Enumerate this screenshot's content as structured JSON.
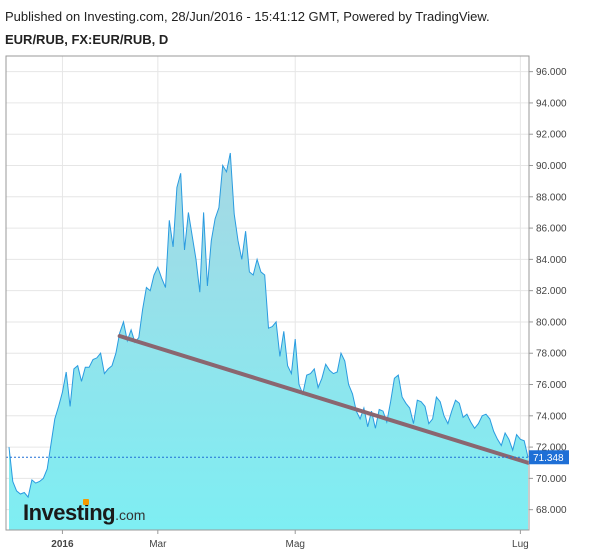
{
  "header": {
    "published": "Published on Investing.com, 28/Jun/2016 - 15:41:12 GMT, Powered by TradingView.",
    "symbol": "EUR/RUB, FX:EUR/RUB, D"
  },
  "logo": {
    "main": "Investing",
    "suffix": ".com"
  },
  "colors": {
    "area_fill_top": "#a6d8e4",
    "area_fill_bottom": "#7eeef3",
    "line": "#2a9be0",
    "trendline": "#8a6670",
    "last_price_bg": "#1e6fd6",
    "grid": "#e6e6e6"
  },
  "chart_data": {
    "type": "area",
    "series": [
      {
        "values": [
          72.0,
          69.8,
          69.2,
          69.0,
          69.1,
          68.8,
          69.9,
          69.7,
          69.8,
          70.0,
          70.6,
          72.2,
          73.8,
          74.6,
          75.5,
          76.8,
          74.6,
          77.0,
          77.2,
          76.2,
          77.1,
          77.1,
          77.6,
          77.7,
          78.0,
          76.7,
          77.0,
          77.2,
          78.0,
          79.3,
          80.0,
          78.8,
          79.5,
          78.7,
          79.0,
          80.8,
          82.2,
          82.0,
          83.0,
          83.5,
          82.8,
          82.2,
          86.5,
          84.8,
          88.6,
          89.5,
          84.6,
          87.0,
          85.5,
          84.0,
          81.9,
          87.0,
          82.3,
          85.2,
          86.6,
          87.3,
          90.0,
          89.6,
          90.8,
          86.9,
          85.2,
          84.0,
          85.8,
          83.2,
          83.0,
          84.0,
          83.2,
          83.0,
          79.6,
          79.7,
          80.0,
          77.8,
          79.4,
          77.2,
          76.7,
          78.9,
          76.0,
          75.4,
          76.6,
          76.7,
          77.0,
          75.8,
          76.4,
          77.3,
          76.9,
          76.7,
          76.8,
          78.0,
          77.5,
          76.0,
          75.4,
          74.3,
          73.8,
          74.5,
          73.3,
          74.3,
          73.2,
          74.4,
          74.3,
          73.6,
          74.9,
          76.4,
          76.6,
          75.2,
          74.8,
          74.5,
          73.5,
          75.0,
          74.9,
          74.6,
          73.5,
          73.8,
          75.2,
          74.9,
          74.0,
          73.5,
          74.3,
          75.0,
          74.8,
          73.9,
          74.1,
          73.6,
          73.2,
          73.5,
          74.0,
          74.1,
          73.8,
          73.0,
          72.5,
          72.1,
          72.9,
          72.5,
          71.8,
          72.8,
          72.5,
          72.4,
          71.35
        ]
      }
    ],
    "x_tick_labels": [
      "2016",
      "Mar",
      "Mag",
      "Lug"
    ],
    "y_tick_labels": [
      "68.000",
      "70.000",
      "72.000",
      "74.000",
      "76.000",
      "78.000",
      "80.000",
      "82.000",
      "84.000",
      "86.000",
      "88.000",
      "90.000",
      "92.000",
      "94.000",
      "96.000"
    ],
    "ylim": [
      66.7,
      97.0
    ],
    "last_price_label": "71.348",
    "trendline": {
      "from": [
        29,
        79.1
      ],
      "to": [
        136,
        71.0
      ]
    },
    "grid": true
  }
}
